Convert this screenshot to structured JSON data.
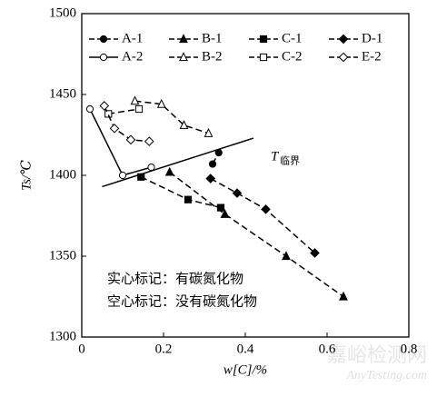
{
  "chart_data": {
    "type": "line",
    "xlabel": "w[C]/%",
    "ylabel": "Ts/℃",
    "xlim": [
      0,
      0.8
    ],
    "ylim": [
      1300,
      1500
    ],
    "xticks": [
      0,
      0.2,
      0.4,
      0.6,
      0.8
    ],
    "yticks": [
      1300,
      1350,
      1400,
      1450,
      1500
    ],
    "series": [
      {
        "name": "A-1",
        "color": "#000000",
        "marker": "circle",
        "filled": true,
        "dashed": true,
        "x": [
          0.32,
          0.335
        ],
        "values": [
          1407,
          1414
        ]
      },
      {
        "name": "B-1",
        "color": "#000000",
        "marker": "triangle",
        "filled": true,
        "dashed": true,
        "x": [
          0.215,
          0.35,
          0.5,
          0.64
        ],
        "values": [
          1402,
          1376,
          1350,
          1325
        ]
      },
      {
        "name": "C-1",
        "color": "#000000",
        "marker": "square",
        "filled": true,
        "dashed": true,
        "x": [
          0.145,
          0.26,
          0.34
        ],
        "values": [
          1399,
          1385,
          1380
        ]
      },
      {
        "name": "D-1",
        "color": "#000000",
        "marker": "diamond",
        "filled": true,
        "dashed": true,
        "x": [
          0.315,
          0.38,
          0.45,
          0.57
        ],
        "values": [
          1398,
          1389,
          1379,
          1352
        ]
      },
      {
        "name": "A-2",
        "color": "#000000",
        "marker": "circle",
        "filled": false,
        "dashed": false,
        "x": [
          0.02,
          0.1,
          0.17
        ],
        "values": [
          1441,
          1400,
          1405
        ]
      },
      {
        "name": "B-2",
        "color": "#000000",
        "marker": "triangle",
        "filled": false,
        "dashed": true,
        "x": [
          0.13,
          0.195,
          0.25,
          0.31
        ],
        "values": [
          1446,
          1444,
          1431,
          1426
        ]
      },
      {
        "name": "C-2",
        "color": "#000000",
        "marker": "square",
        "filled": false,
        "dashed": true,
        "x": [
          0.065,
          0.14
        ],
        "values": [
          1438,
          1441
        ]
      },
      {
        "name": "E-2",
        "color": "#000000",
        "marker": "diamond",
        "filled": false,
        "dashed": true,
        "x": [
          0.055,
          0.08,
          0.12,
          0.165
        ],
        "values": [
          1443,
          1429,
          1422,
          1421
        ]
      }
    ],
    "threshold_line": {
      "label": "T",
      "subscript": "临界",
      "x": [
        0.05,
        0.42
      ],
      "y": [
        1393,
        1423
      ]
    },
    "annotations": [
      "实心标记：有碳氮化物",
      "空心标记：没有碳氮化物"
    ],
    "watermark": [
      "嘉峪检测网",
      "AnyTesting.com"
    ]
  }
}
